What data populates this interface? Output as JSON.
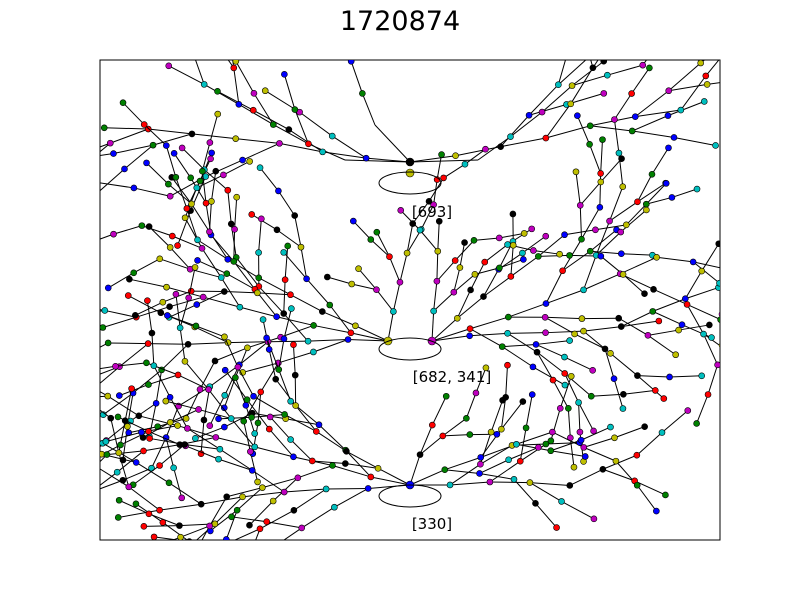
{
  "figure": {
    "title": "1720874"
  },
  "trees": [
    {
      "label": "[693]",
      "complexity": "medium"
    },
    {
      "label": "[682, 341]",
      "complexity": "dense"
    },
    {
      "label": "[330]",
      "complexity": "dense"
    }
  ],
  "palette": [
    "#ff0000",
    "#008000",
    "#0000ff",
    "#00bfbf",
    "#bf00bf",
    "#bfbf00",
    "#000000"
  ]
}
